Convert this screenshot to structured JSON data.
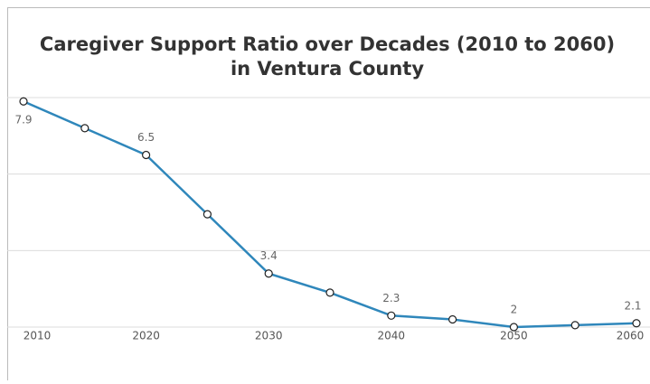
{
  "chart_data": {
    "type": "line",
    "title": [
      "Caregiver Support Ratio over Decades (2010 to 2060)",
      "in Ventura County"
    ],
    "x": [
      2010,
      2015,
      2020,
      2025,
      2030,
      2035,
      2040,
      2045,
      2050,
      2055,
      2060
    ],
    "series": [
      {
        "name": "Caregiver Support Ratio",
        "color": "#2f87bb",
        "values": [
          7.9,
          7.2,
          6.5,
          4.95,
          3.4,
          2.9,
          2.3,
          2.2,
          2,
          2.05,
          2.1
        ],
        "value_labels": [
          "7.9",
          null,
          "6.5",
          null,
          "3.4",
          null,
          "2.3",
          null,
          "2",
          null,
          "2.1"
        ]
      }
    ],
    "xlim": [
      2010,
      2060
    ],
    "xticks": [
      2010,
      2020,
      2030,
      2040,
      2050,
      2060
    ],
    "ylim": [
      2,
      8
    ],
    "yticks": [
      2,
      4,
      6,
      8
    ],
    "grid": true
  }
}
